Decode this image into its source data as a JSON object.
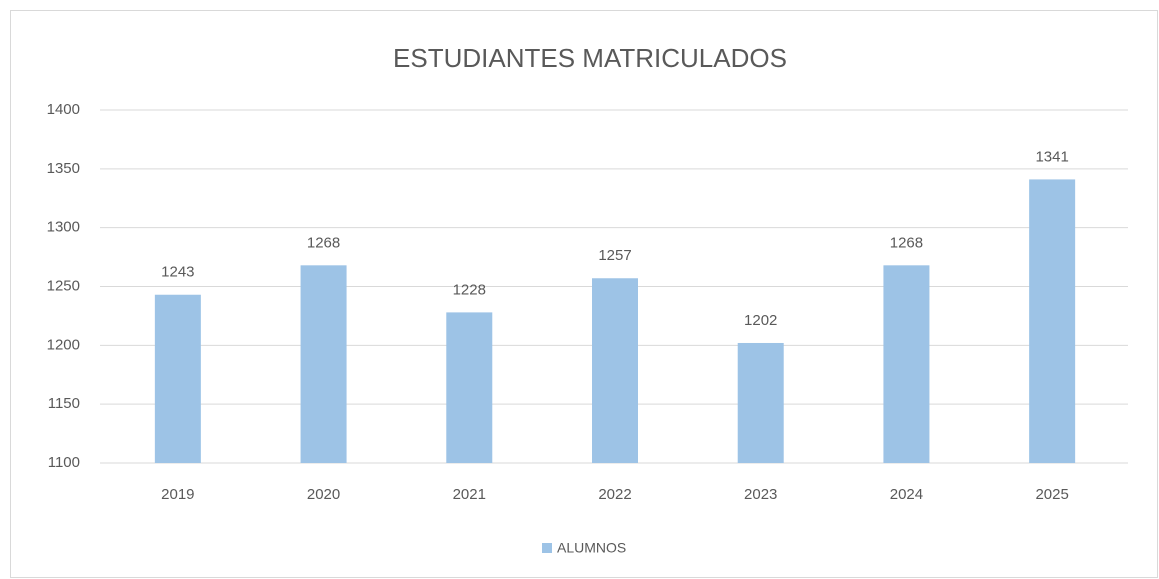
{
  "chart_data": {
    "type": "bar",
    "title": "ESTUDIANTES MATRICULADOS",
    "categories": [
      "2019",
      "2020",
      "2021",
      "2022",
      "2023",
      "2024",
      "2025"
    ],
    "series": [
      {
        "name": "ALUMNOS",
        "color": "#9dc3e6",
        "values": [
          1243,
          1268,
          1228,
          1257,
          1202,
          1268,
          1341
        ]
      }
    ],
    "ylim": [
      1100,
      1400
    ],
    "yticks": [
      1100,
      1150,
      1200,
      1250,
      1300,
      1350,
      1400
    ],
    "grid": true,
    "legend": "bottom"
  }
}
